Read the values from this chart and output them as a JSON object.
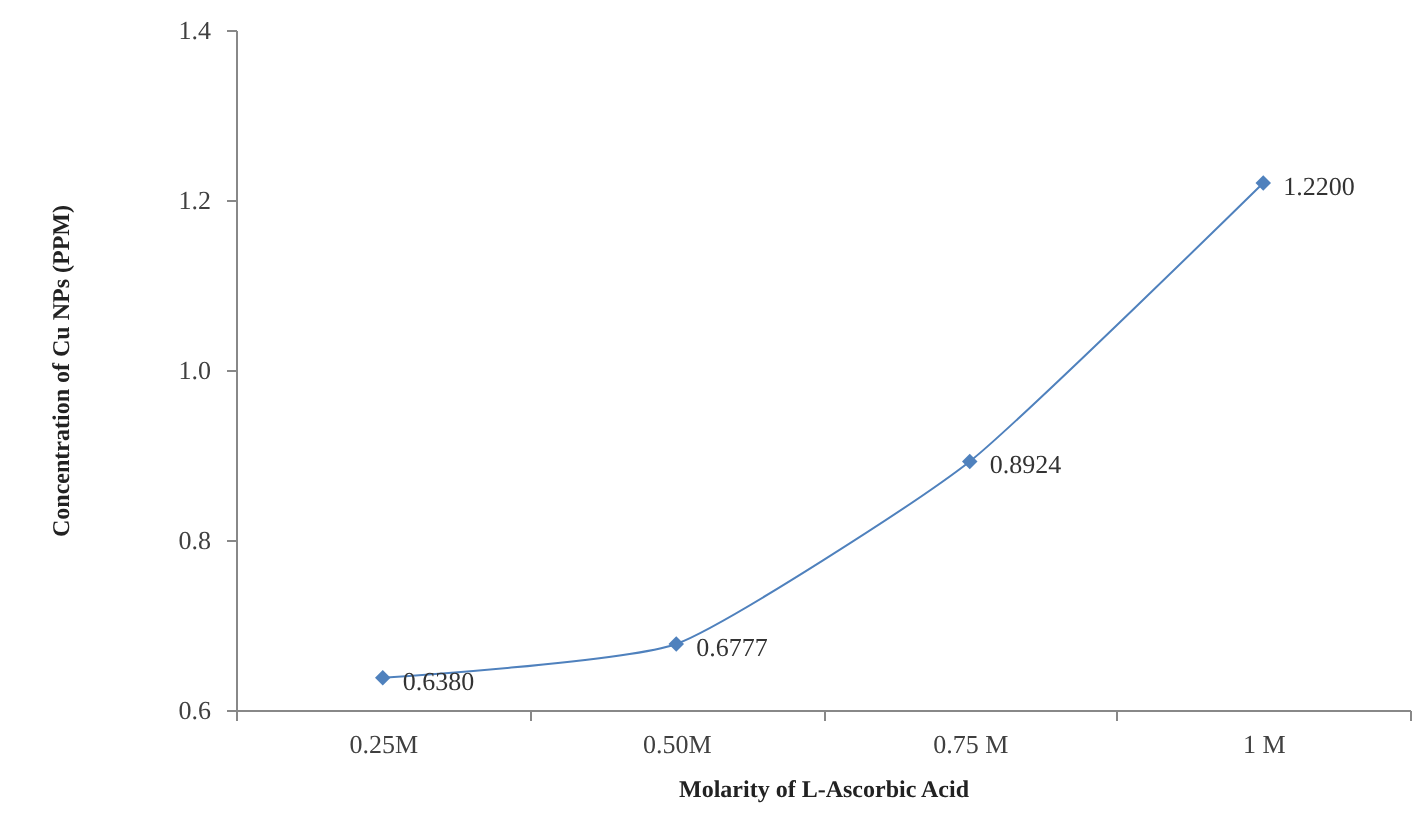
{
  "chart_data": {
    "type": "line",
    "xlabel": "Molarity of L-Ascorbic Acid",
    "ylabel": "Concentration of Cu NPs (PPM)",
    "categories": [
      "0.25M",
      "0.50M",
      "0.75 M",
      "1 M"
    ],
    "values": [
      0.638,
      0.6777,
      0.8924,
      1.22
    ],
    "color": "#4f81bd",
    "value_labels": [
      "0.6380",
      "0.6777",
      "0.8924",
      "1.2200"
    ],
    "ylim": [
      0.6,
      1.4
    ],
    "yticks": [
      0.6,
      0.8,
      {
        "value": 1.0,
        "label": "1.0"
      },
      1.2,
      1.4
    ],
    "grid": false,
    "marker": "diamond"
  }
}
